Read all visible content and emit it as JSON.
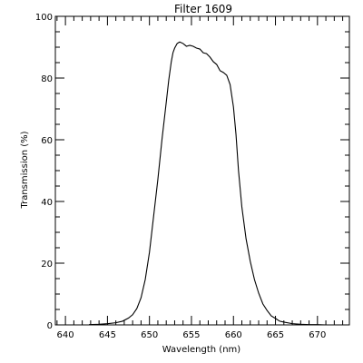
{
  "chart_data": {
    "type": "line",
    "title": "Filter 1609",
    "xlabel": "Wavelength (nm)",
    "ylabel": "Transmission (%)",
    "xlim": [
      638.8,
      673.8
    ],
    "ylim": [
      0,
      100
    ],
    "xticks": [
      640,
      645,
      650,
      655,
      660,
      665,
      670
    ],
    "yticks": [
      0,
      20,
      40,
      60,
      80,
      100
    ],
    "grid": false,
    "line_color": "#000000",
    "series": [
      {
        "x": [
          642.8,
          644.0,
          645.0,
          646.0,
          646.8,
          647.5,
          648.0,
          648.5,
          649.0,
          649.5,
          650.0,
          650.5,
          651.0,
          651.5,
          652.0,
          652.3,
          652.6,
          652.8,
          653.0,
          653.3,
          653.6,
          654.0,
          654.4,
          654.8,
          655.2,
          655.6,
          656.0,
          656.4,
          656.8,
          657.2,
          657.6,
          658.0,
          658.4,
          658.8,
          659.2,
          659.6,
          660.0,
          660.3,
          660.6,
          661.0,
          661.5,
          662.0,
          662.5,
          663.0,
          663.5,
          664.0,
          664.5,
          665.0,
          665.5,
          666.0,
          667.0,
          668.0,
          669.0,
          670.0,
          671.0
        ],
        "y": [
          0.1,
          0.2,
          0.4,
          0.7,
          1.2,
          2.2,
          3.3,
          5.3,
          8.8,
          14.7,
          23.5,
          35.3,
          47.1,
          60.3,
          72.1,
          79.4,
          85.3,
          88.2,
          89.7,
          91.2,
          91.7,
          91.2,
          90.3,
          90.6,
          90.3,
          89.7,
          89.4,
          88.2,
          87.9,
          86.8,
          85.3,
          84.4,
          82.4,
          81.8,
          80.9,
          77.9,
          70.6,
          61.8,
          50.0,
          38.2,
          27.9,
          20.6,
          14.7,
          10.3,
          6.8,
          4.7,
          2.9,
          2.1,
          1.2,
          0.9,
          0.4,
          0.2,
          0.1,
          0.1,
          0.0
        ]
      }
    ]
  }
}
